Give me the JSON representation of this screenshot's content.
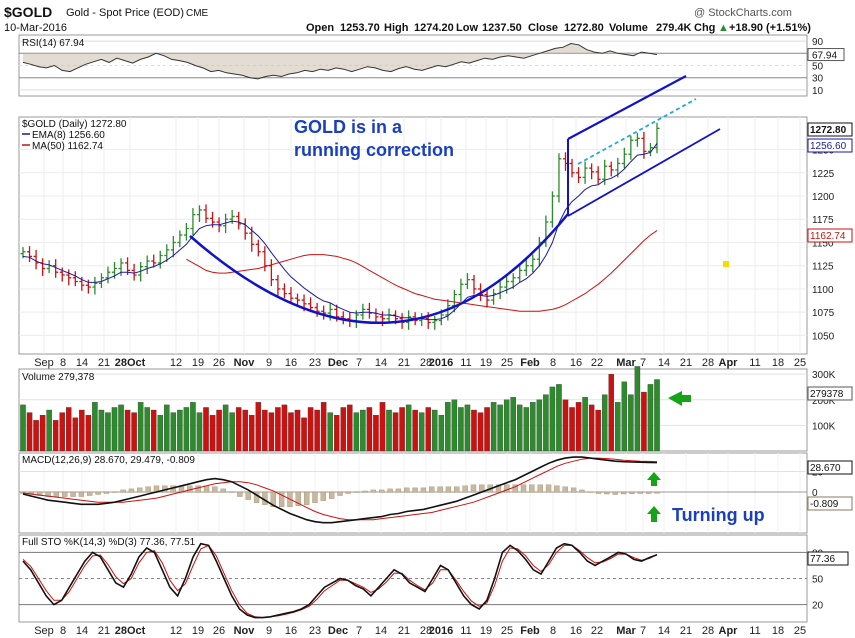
{
  "header": {
    "symbol": "$GOLD",
    "name": "Gold - Spot Price (EOD)",
    "exchange": "CME",
    "date": "10-Mar-2016",
    "credit": "@ StockCharts.com",
    "open_label": "Open",
    "open": "1253.70",
    "high_label": "High",
    "high": "1274.20",
    "low_label": "Low",
    "low": "1237.50",
    "close_label": "Close",
    "close": "1272.80",
    "volume_label": "Volume",
    "volume": "279.4K",
    "chg_label": "Chg",
    "chg": "+18.90 (+1.51%)",
    "chg_arrow": "▲"
  },
  "colors": {
    "up": "#2d8a2d",
    "down": "#cc1111",
    "ema": "#1a1aa0",
    "ma50": "#cc1111",
    "trendline": "#1212c8",
    "dashed": "#22aadd",
    "annotation": "#1a3fbf",
    "arrow": "#17a317",
    "panel_bg": "#ffffff",
    "frame": "#e6e6e6"
  },
  "chart_data": [
    {
      "type": "line",
      "panel": "rsi",
      "legend": "RSI(14) 67.94",
      "value_tag": "67.94",
      "ylim": [
        0,
        100
      ],
      "y_ticks": [
        "90",
        "70",
        "50",
        "30",
        "10"
      ],
      "series": [
        {
          "name": "RSI(14)",
          "values": [
            55,
            52,
            48,
            46,
            50,
            42,
            40,
            46,
            52,
            56,
            60,
            55,
            62,
            58,
            54,
            60,
            64,
            70,
            66,
            60,
            58,
            55,
            50,
            46,
            40,
            42,
            38,
            36,
            34,
            30,
            28,
            32,
            34,
            32,
            36,
            38,
            42,
            40,
            44,
            42,
            46,
            44,
            40,
            44,
            48,
            46,
            42,
            40,
            45,
            48,
            44,
            42,
            46,
            50,
            48,
            52,
            56,
            54,
            58,
            62,
            60,
            64,
            66,
            64,
            62,
            66,
            70,
            74,
            78,
            80,
            86,
            84,
            76,
            72,
            70,
            74,
            70,
            68,
            66,
            72,
            70,
            67.94
          ]
        }
      ]
    },
    {
      "type": "candlestick",
      "panel": "price",
      "legend": [
        "$GOLD (Daily) 1272.80",
        "EMA(8) 1256.60",
        "MA(50) 1162.74"
      ],
      "price_tags": [
        "1272.80",
        "1256.60",
        "1162.74"
      ],
      "ylim": [
        1030,
        1285
      ],
      "y_ticks": [
        "1250",
        "1225",
        "1200",
        "1175",
        "1150",
        "1125",
        "1100",
        "1075",
        "1050"
      ],
      "x_ticks": [
        "Sep",
        "8",
        "14",
        "21",
        "28Oct",
        "12",
        "19",
        "26",
        "Nov",
        "9",
        "16",
        "23",
        "Dec",
        "7",
        "14",
        "21",
        "28",
        "2016",
        "11",
        "19",
        "25",
        "Feb",
        "8",
        "16",
        "22",
        "Mar",
        "7",
        "14",
        "21",
        "28",
        "Apr",
        "11",
        "18",
        "25"
      ],
      "annotation": [
        "GOLD is in a",
        "running correction"
      ],
      "closes": [
        1140,
        1135,
        1128,
        1122,
        1125,
        1118,
        1115,
        1112,
        1108,
        1104,
        1102,
        1106,
        1112,
        1118,
        1122,
        1128,
        1120,
        1115,
        1124,
        1130,
        1128,
        1136,
        1142,
        1150,
        1158,
        1165,
        1180,
        1185,
        1176,
        1172,
        1168,
        1175,
        1178,
        1170,
        1160,
        1148,
        1140,
        1125,
        1110,
        1100,
        1095,
        1090,
        1088,
        1084,
        1080,
        1076,
        1074,
        1078,
        1070,
        1068,
        1066,
        1072,
        1078,
        1074,
        1070,
        1068,
        1072,
        1068,
        1064,
        1070,
        1066,
        1068,
        1064,
        1066,
        1072,
        1082,
        1094,
        1105,
        1110,
        1100,
        1094,
        1088,
        1095,
        1102,
        1108,
        1112,
        1120,
        1125,
        1132,
        1150,
        1172,
        1200,
        1240,
        1235,
        1225,
        1220,
        1230,
        1226,
        1218,
        1232,
        1228,
        1235,
        1245,
        1260,
        1262,
        1248,
        1252,
        1272.8
      ],
      "ema8": [
        1135,
        1134,
        1130,
        1127,
        1126,
        1123,
        1120,
        1117,
        1114,
        1110,
        1107,
        1107,
        1108,
        1111,
        1114,
        1118,
        1118,
        1117,
        1119,
        1122,
        1124,
        1127,
        1131,
        1136,
        1142,
        1148,
        1157,
        1165,
        1168,
        1169,
        1169,
        1171,
        1173,
        1172,
        1169,
        1163,
        1157,
        1149,
        1139,
        1130,
        1121,
        1113,
        1107,
        1101,
        1096,
        1091,
        1087,
        1085,
        1081,
        1078,
        1075,
        1074,
        1075,
        1075,
        1074,
        1072,
        1072,
        1071,
        1069,
        1069,
        1068,
        1068,
        1067,
        1067,
        1068,
        1071,
        1077,
        1084,
        1091,
        1093,
        1093,
        1092,
        1093,
        1096,
        1099,
        1102,
        1107,
        1111,
        1117,
        1125,
        1136,
        1150,
        1171,
        1185,
        1194,
        1200,
        1207,
        1211,
        1212,
        1217,
        1219,
        1223,
        1229,
        1237,
        1244,
        1245,
        1247,
        1256.6
      ],
      "ma50": [
        1132,
        1128,
        1124,
        1120,
        1118,
        1117,
        1117,
        1118,
        1119,
        1120,
        1121,
        1122,
        1124,
        1126,
        1128,
        1130,
        1132,
        1134,
        1136,
        1137,
        1137,
        1137,
        1136,
        1135,
        1133,
        1131,
        1128,
        1124,
        1120,
        1116,
        1112,
        1108,
        1104,
        1101,
        1098,
        1095,
        1093,
        1091,
        1089,
        1088,
        1087,
        1086,
        1085,
        1084,
        1083,
        1082,
        1081,
        1080,
        1079,
        1078,
        1077,
        1076,
        1076,
        1076,
        1076,
        1077,
        1078,
        1080,
        1083,
        1087,
        1091,
        1095,
        1100,
        1105,
        1111,
        1117,
        1124,
        1131,
        1138,
        1145,
        1152,
        1158,
        1162.74
      ]
    },
    {
      "type": "bar",
      "panel": "volume",
      "legend": "Volume 279,378",
      "value_tag": "279378",
      "ylim": [
        0,
        320000
      ],
      "y_ticks": [
        "300K",
        "200K",
        "100K"
      ],
      "values": [
        180,
        150,
        120,
        140,
        160,
        120,
        150,
        170,
        130,
        160,
        140,
        190,
        160,
        150,
        170,
        180,
        160,
        150,
        190,
        170,
        160,
        140,
        180,
        150,
        160,
        170,
        190,
        150,
        170,
        140,
        160,
        180,
        150,
        170,
        160,
        140,
        190,
        160,
        150,
        170,
        180,
        150,
        160,
        130,
        170,
        160,
        190,
        150,
        140,
        170,
        180,
        150,
        160,
        170,
        140,
        190,
        160,
        150,
        170,
        180,
        160,
        150,
        170,
        160,
        140,
        190,
        200,
        170,
        180,
        160,
        150,
        170,
        190,
        180,
        200,
        210,
        180,
        170,
        190,
        200,
        220,
        250,
        260,
        200,
        170,
        190,
        210,
        180,
        160,
        220,
        300,
        190,
        270,
        220,
        330,
        230,
        260,
        279
      ]
    },
    {
      "type": "line",
      "panel": "macd",
      "legend": "MACD(12,26,9) 28.670, 29.479, -0.809",
      "value_tags": [
        "28.670",
        "-0.809"
      ],
      "ylim": [
        -40,
        38
      ],
      "y_ticks": [
        "20",
        "0"
      ],
      "annotation": "Turning up",
      "series": [
        {
          "name": "MACD(12,26,9)",
          "values": [
            -2,
            -4,
            -6,
            -8,
            -9,
            -10,
            -11,
            -12,
            -12,
            -12,
            -11,
            -10,
            -8,
            -6,
            -4,
            -2,
            0,
            2,
            4,
            6,
            8,
            10,
            12,
            13,
            12,
            10,
            6,
            2,
            -3,
            -8,
            -13,
            -17,
            -21,
            -24,
            -27,
            -29,
            -30,
            -30,
            -29,
            -28,
            -27,
            -26,
            -25,
            -24,
            -22,
            -21,
            -19,
            -18,
            -17,
            -15,
            -13,
            -11,
            -9,
            -6,
            -3,
            0,
            3,
            6,
            9,
            12,
            16,
            20,
            24,
            28,
            31,
            33,
            34,
            34,
            33,
            32,
            31,
            30,
            29.5,
            29.2,
            29,
            28.8,
            28.67
          ]
        },
        {
          "name": "Signal",
          "values": [
            -1,
            -2,
            -3,
            -4,
            -5,
            -6,
            -7,
            -8,
            -9,
            -10,
            -10,
            -10,
            -10,
            -9,
            -8,
            -7,
            -6,
            -4,
            -2,
            0,
            2,
            4,
            6,
            8,
            9,
            10,
            10,
            9,
            7,
            4,
            1,
            -3,
            -7,
            -11,
            -15,
            -19,
            -22,
            -24,
            -26,
            -27,
            -27,
            -27,
            -27,
            -26,
            -25,
            -24,
            -23,
            -22,
            -21,
            -20,
            -18,
            -16,
            -14,
            -12,
            -10,
            -7,
            -4,
            -1,
            2,
            5,
            9,
            13,
            17,
            21,
            25,
            28,
            30,
            32,
            33,
            33,
            32.5,
            32,
            31,
            30.5,
            30,
            29.8,
            29.479
          ]
        }
      ]
    },
    {
      "type": "line",
      "panel": "stochastic",
      "legend": "Full STO %K(14,3) %D(3) 77.36, 77.51",
      "value_tag": "77.36",
      "ylim": [
        0,
        100
      ],
      "y_ticks": [
        "80",
        "50",
        "20"
      ],
      "series": [
        {
          "name": "%K(14,3)",
          "values": [
            70,
            60,
            45,
            30,
            20,
            25,
            40,
            55,
            70,
            80,
            75,
            60,
            45,
            40,
            55,
            75,
            85,
            80,
            60,
            40,
            30,
            50,
            75,
            90,
            88,
            70,
            50,
            30,
            15,
            8,
            5,
            5,
            6,
            8,
            10,
            12,
            15,
            20,
            30,
            40,
            45,
            50,
            48,
            42,
            38,
            30,
            40,
            50,
            60,
            55,
            45,
            40,
            35,
            50,
            65,
            60,
            45,
            30,
            20,
            15,
            25,
            50,
            80,
            88,
            82,
            72,
            60,
            55,
            70,
            85,
            90,
            88,
            80,
            70,
            65,
            70,
            75,
            80,
            78,
            72,
            70,
            74,
            77.36
          ]
        },
        {
          "name": "%D(3)",
          "values": [
            72,
            64,
            50,
            36,
            25,
            25,
            35,
            50,
            65,
            76,
            77,
            66,
            52,
            44,
            50,
            68,
            80,
            82,
            68,
            48,
            36,
            44,
            65,
            84,
            88,
            76,
            56,
            36,
            20,
            10,
            6,
            5,
            6,
            7,
            9,
            11,
            14,
            18,
            26,
            36,
            42,
            48,
            48,
            44,
            40,
            34,
            38,
            46,
            56,
            56,
            48,
            42,
            37,
            45,
            60,
            60,
            48,
            35,
            24,
            18,
            22,
            42,
            70,
            85,
            84,
            76,
            65,
            58,
            66,
            80,
            88,
            88,
            82,
            74,
            68,
            69,
            73,
            78,
            78,
            74,
            71,
            73,
            77.51
          ]
        }
      ]
    }
  ]
}
